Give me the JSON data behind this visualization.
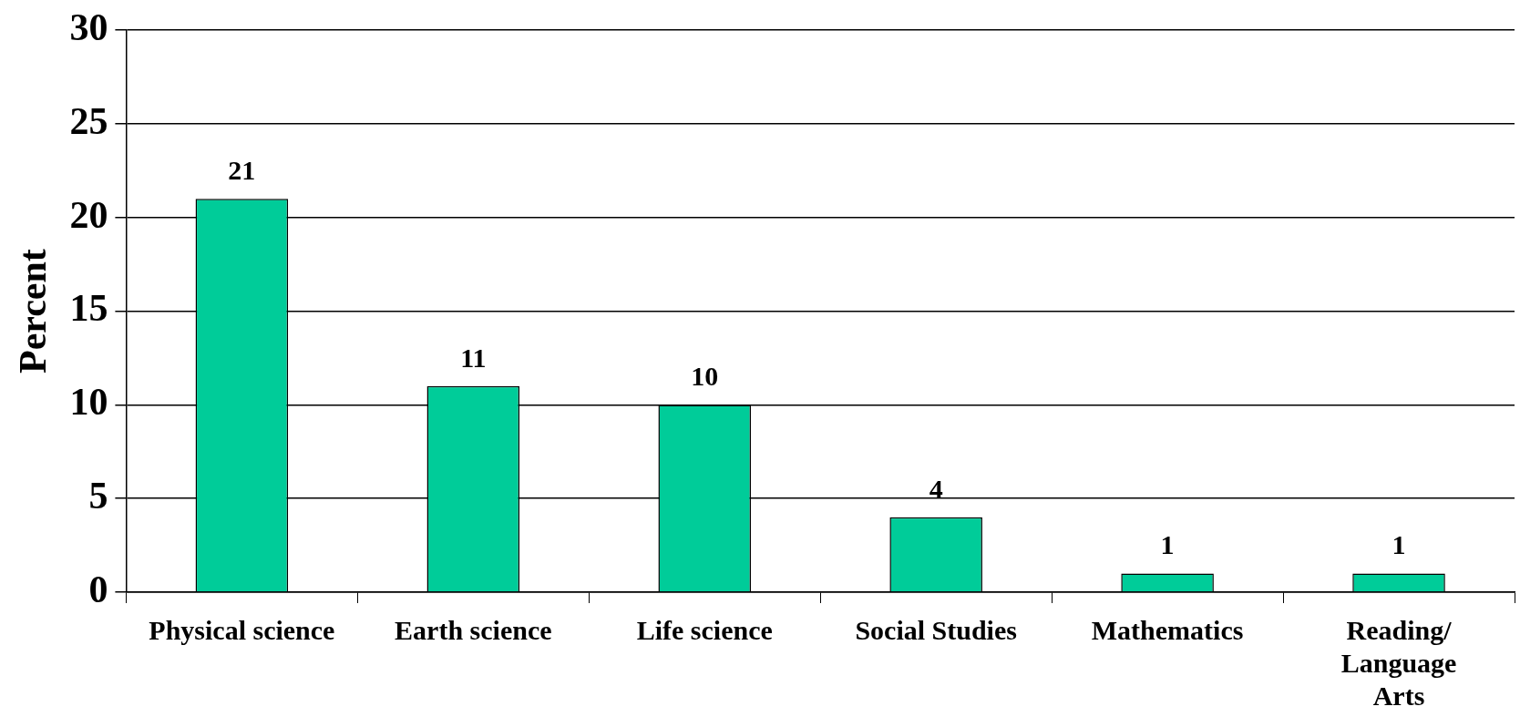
{
  "chart_data": {
    "type": "bar",
    "ylabel": "Percent",
    "categories": [
      "Physical science",
      "Earth science",
      "Life science",
      "Social Studies",
      "Mathematics",
      "Reading/ Language Arts"
    ],
    "values": [
      21,
      11,
      10,
      4,
      1,
      1
    ],
    "color": "#00cc99",
    "ylim": [
      0,
      30
    ],
    "yticks": [
      0,
      5,
      10,
      15,
      20,
      25,
      30
    ],
    "grid": "y",
    "data_labels": true,
    "legend": false
  }
}
